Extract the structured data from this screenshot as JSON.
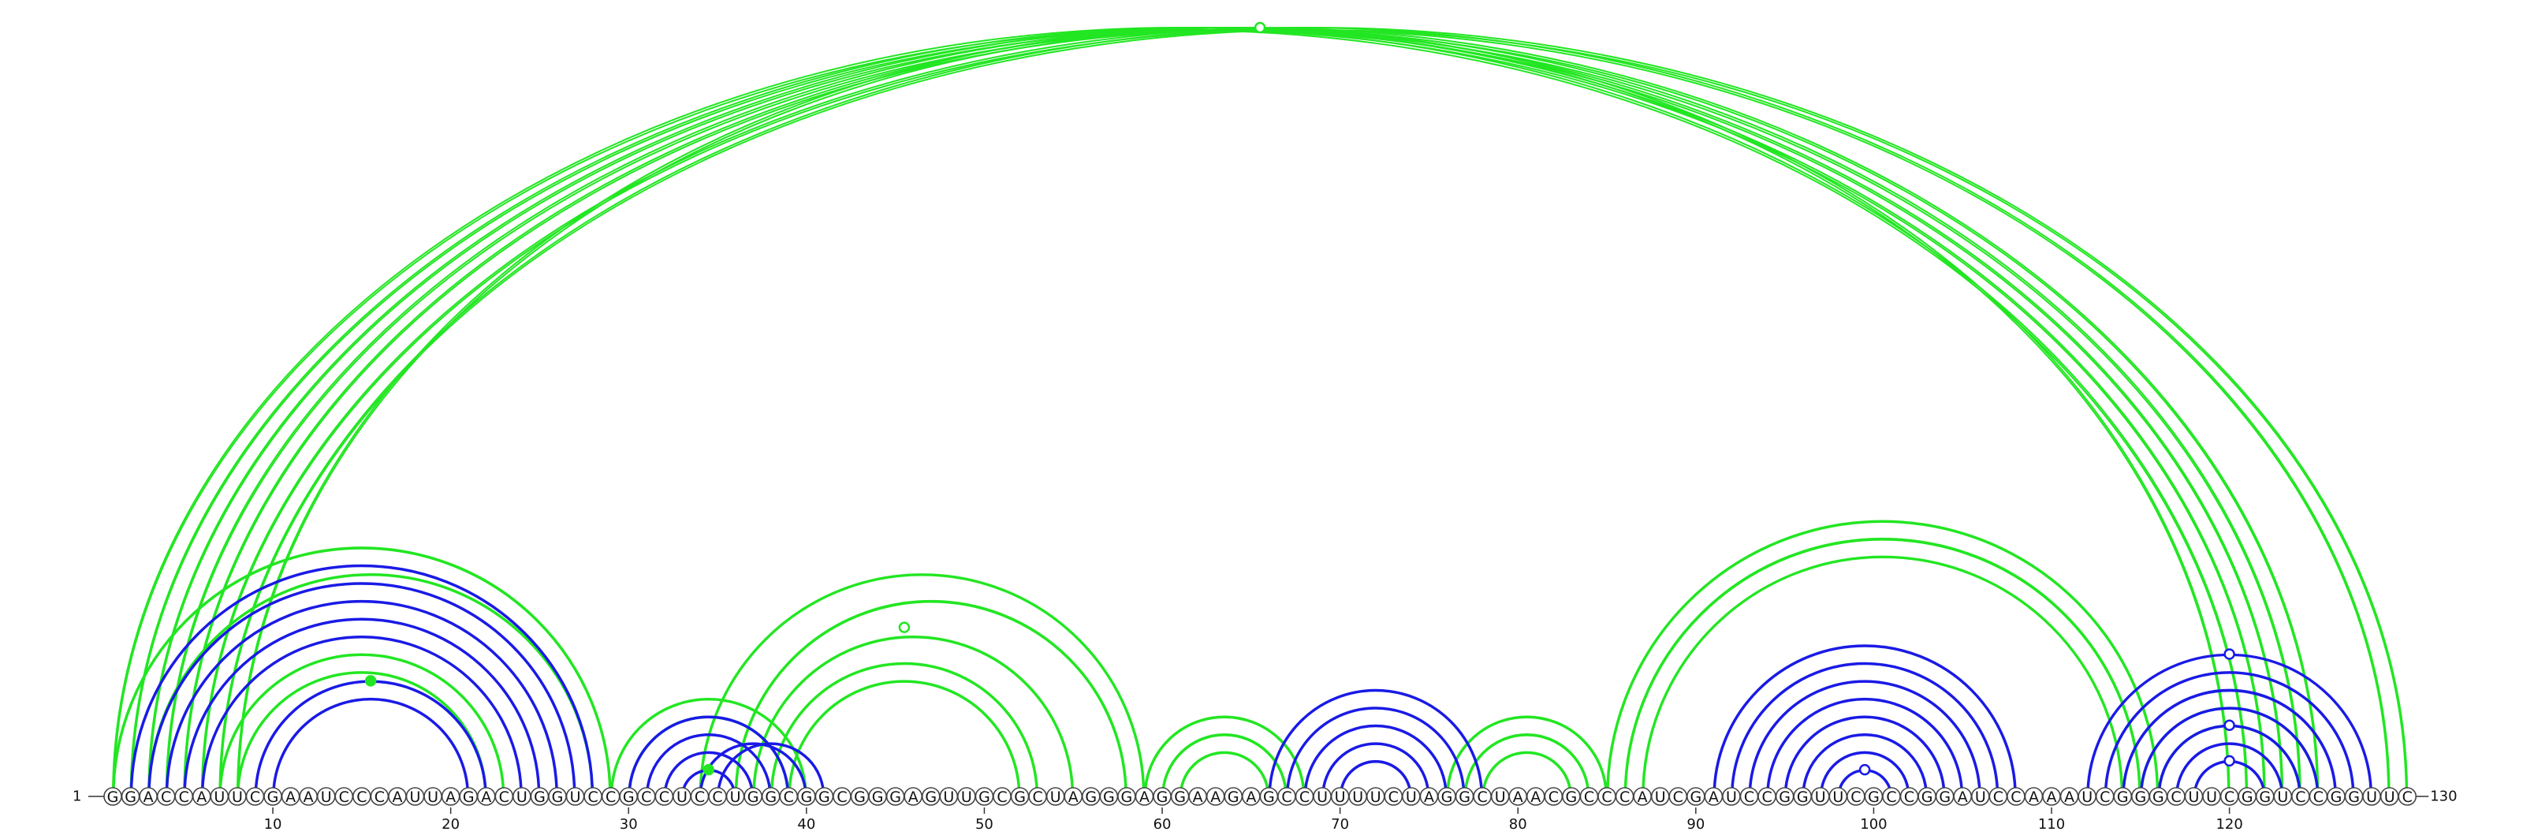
{
  "diagram": {
    "sequence": "GGACCAUUCGAAUCCCAUUAGACUGGUCCGCCUCCUGGCGGCGGGAGUUGCGCUAGGGAGGAAGAGCCUUUUCUAGGCUAACGCCCAUCGAUCCGGUUCGCCGGAUCCAAAUCGGGCUUCGGUCCGGUUC",
    "start_label": "1",
    "end_label": "130",
    "tick_labels": [
      "10",
      "20",
      "30",
      "40",
      "50",
      "60",
      "70",
      "80",
      "90",
      "100",
      "110",
      "120"
    ],
    "colors": {
      "green_pairs": "#22e622",
      "blue_pairs": "#1a1ae6",
      "nucleotide_outline": "#444444"
    },
    "green_pairs": [
      [
        1,
        121
      ],
      [
        2,
        122
      ],
      [
        3,
        123
      ],
      [
        4,
        124
      ],
      [
        5,
        125
      ],
      [
        6,
        129
      ],
      [
        7,
        130
      ],
      [
        8,
        120
      ],
      [
        1,
        29
      ],
      [
        3,
        28
      ],
      [
        7,
        23
      ],
      [
        8,
        22
      ],
      [
        29,
        40
      ],
      [
        30,
        39
      ],
      [
        34,
        59
      ],
      [
        36,
        58
      ],
      [
        37,
        55
      ],
      [
        38,
        53
      ],
      [
        39,
        52
      ],
      [
        59,
        68
      ],
      [
        60,
        67
      ],
      [
        61,
        66
      ],
      [
        76,
        85
      ],
      [
        77,
        84
      ],
      [
        78,
        83
      ],
      [
        85,
        116
      ],
      [
        86,
        115
      ],
      [
        87,
        114
      ],
      [
        115,
        125
      ],
      [
        116,
        124
      ]
    ],
    "blue_pairs": [
      [
        2,
        28
      ],
      [
        3,
        27
      ],
      [
        4,
        26
      ],
      [
        5,
        25
      ],
      [
        6,
        24
      ],
      [
        9,
        22
      ],
      [
        10,
        21
      ],
      [
        30,
        39
      ],
      [
        31,
        38
      ],
      [
        32,
        37
      ],
      [
        33,
        36
      ],
      [
        34,
        40
      ],
      [
        35,
        41
      ],
      [
        66,
        78
      ],
      [
        67,
        77
      ],
      [
        68,
        76
      ],
      [
        69,
        75
      ],
      [
        70,
        74
      ],
      [
        91,
        108
      ],
      [
        92,
        107
      ],
      [
        93,
        106
      ],
      [
        94,
        105
      ],
      [
        95,
        104
      ],
      [
        96,
        103
      ],
      [
        97,
        102
      ],
      [
        98,
        101
      ],
      [
        112,
        128
      ],
      [
        113,
        127
      ],
      [
        114,
        126
      ],
      [
        115,
        125
      ],
      [
        116,
        124
      ],
      [
        117,
        123
      ],
      [
        118,
        122
      ]
    ],
    "markers": [
      {
        "i": 1,
        "j": 130,
        "color": "green",
        "filled": false
      },
      {
        "i": 9,
        "j": 22,
        "color": "green",
        "filled": true
      },
      {
        "i": 36,
        "j": 55,
        "color": "green",
        "filled": false
      },
      {
        "i": 33,
        "j": 36,
        "color": "green",
        "filled": true
      },
      {
        "i": 112,
        "j": 128,
        "color": "blue",
        "filled": false
      },
      {
        "i": 116,
        "j": 124,
        "color": "blue",
        "filled": false
      },
      {
        "i": 98,
        "j": 101,
        "color": "blue",
        "filled": false
      },
      {
        "i": 118,
        "j": 122,
        "color": "blue",
        "filled": false
      }
    ]
  }
}
